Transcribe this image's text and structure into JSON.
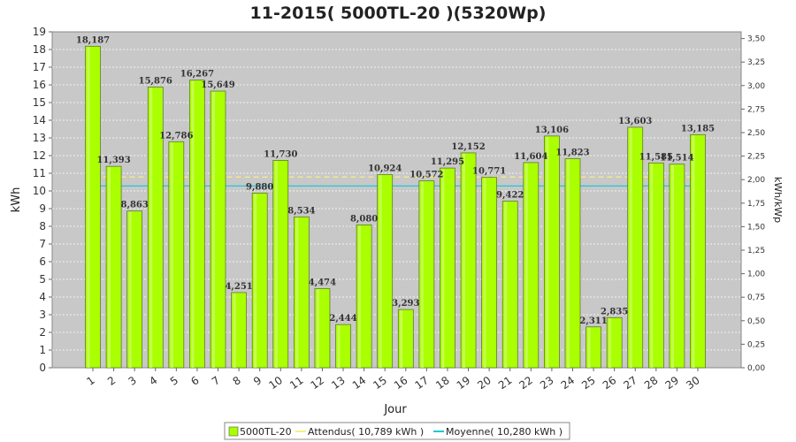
{
  "chart_data": {
    "type": "bar",
    "title": "11-2015( 5000TL-20 )(5320Wp)",
    "xlabel": "Jour",
    "ylabel": "kWh",
    "ylabel_right": "kWh/kWp",
    "ylim": [
      0,
      19
    ],
    "ylim_right": [
      0,
      3.5714
    ],
    "y_ticks": [
      0,
      1,
      2,
      3,
      4,
      5,
      6,
      7,
      8,
      9,
      10,
      11,
      12,
      13,
      14,
      15,
      16,
      17,
      18,
      19
    ],
    "y_right_ticks": [
      "0,00",
      "0,25",
      "0,50",
      "0,75",
      "1,00",
      "1,25",
      "1,50",
      "1,75",
      "2,00",
      "2,25",
      "2,50",
      "2,75",
      "3,00",
      "3,25",
      "3,50"
    ],
    "categories": [
      "1",
      "2",
      "3",
      "4",
      "5",
      "6",
      "7",
      "8",
      "9",
      "10",
      "11",
      "12",
      "13",
      "14",
      "15",
      "16",
      "17",
      "18",
      "19",
      "20",
      "21",
      "22",
      "23",
      "24",
      "25",
      "26",
      "27",
      "28",
      "29",
      "30"
    ],
    "series": [
      {
        "name": "5000TL-20",
        "color": "#aaff00",
        "values": [
          18.187,
          11.393,
          8.863,
          15.876,
          12.786,
          16.267,
          15.649,
          4.251,
          9.88,
          11.73,
          8.534,
          4.474,
          2.444,
          8.08,
          10.924,
          3.293,
          10.572,
          11.295,
          12.152,
          10.771,
          9.422,
          11.604,
          13.106,
          11.823,
          2.311,
          2.835,
          13.603,
          11.585,
          11.514,
          13.185
        ],
        "labels": [
          "18,187",
          "11,393",
          "8,863",
          "15,876",
          "12,786",
          "16,267",
          "15,649",
          "4,251",
          "9,880",
          "11,730",
          "8,534",
          "4,474",
          "2,444",
          "8,080",
          "10,924",
          "3,293",
          "10,572",
          "11,295",
          "12,152",
          "10,771",
          "9,422",
          "11,604",
          "13,106",
          "11,823",
          "2,311",
          "2,835",
          "13,603",
          "11,585",
          "11,514",
          "13,185"
        ]
      }
    ],
    "reference_lines": [
      {
        "name": "Attendus",
        "value": 10.789,
        "color": "#f5f080",
        "style": "dashed"
      },
      {
        "name": "Moyenne",
        "value": 10.28,
        "color": "#20c8d0",
        "style": "solid"
      }
    ],
    "legend": {
      "position": "bottom",
      "items": [
        "5000TL-20",
        "Attendus( 10,789 kWh )",
        "Moyenne( 10,280 kWh )"
      ]
    },
    "grid": true,
    "plot_background": "#c8c8c8"
  }
}
